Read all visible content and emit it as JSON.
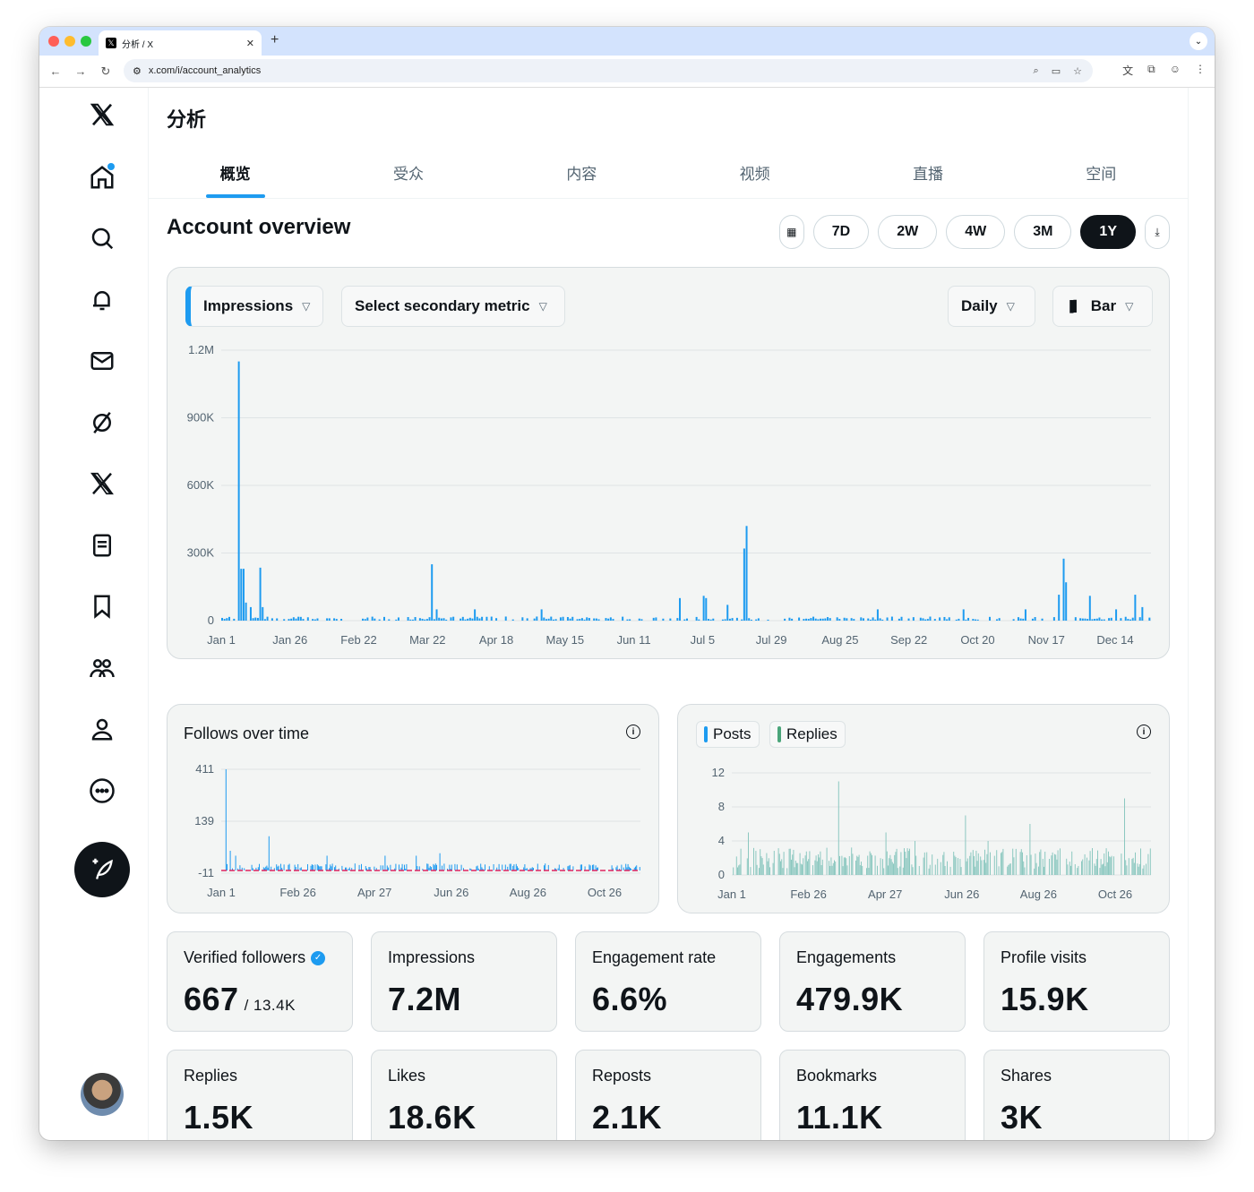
{
  "browser": {
    "tab_title": "分析 / X",
    "url": "x.com/i/account_analytics"
  },
  "page": {
    "title": "分析",
    "tabs": [
      "概览",
      "受众",
      "内容",
      "视频",
      "直播",
      "空间"
    ],
    "section_title": "Account overview",
    "ranges": [
      "7D",
      "2W",
      "4W",
      "3M",
      "1Y"
    ],
    "active_range": "1Y"
  },
  "main_chart": {
    "primary_metric": "Impressions",
    "secondary_metric": "Select secondary metric",
    "granularity": "Daily",
    "chart_kind": "Bar"
  },
  "follows_card": {
    "title": "Follows over time"
  },
  "posts_card": {
    "legend": [
      "Posts",
      "Replies"
    ]
  },
  "colors": {
    "accent": "#1d9bf0",
    "replies": "#4aa57a",
    "negative": "#e0245e"
  },
  "chart_data": [
    {
      "type": "bar",
      "title": "Impressions",
      "ylim": [
        0,
        1200000
      ],
      "y_ticks": [
        "0",
        "300K",
        "600K",
        "900K",
        "1.2M"
      ],
      "x_ticks": [
        "Jan 1",
        "Jan 26",
        "Feb 22",
        "Mar 22",
        "Apr 18",
        "May 15",
        "Jun 11",
        "Jul 5",
        "Jul 29",
        "Aug 25",
        "Sep 22",
        "Oct 20",
        "Nov 17",
        "Dec 14"
      ],
      "series": [
        {
          "name": "Impressions",
          "peaks": [
            [
              7,
              1150000
            ],
            [
              8,
              230000
            ],
            [
              9,
              230000
            ],
            [
              10,
              80000
            ],
            [
              12,
              60000
            ],
            [
              16,
              235000
            ],
            [
              17,
              60000
            ],
            [
              88,
              250000
            ],
            [
              90,
              50000
            ],
            [
              106,
              50000
            ],
            [
              134,
              50000
            ],
            [
              192,
              100000
            ],
            [
              202,
              110000
            ],
            [
              203,
              100000
            ],
            [
              212,
              70000
            ],
            [
              219,
              320000
            ],
            [
              220,
              420000
            ],
            [
              275,
              50000
            ],
            [
              311,
              50000
            ],
            [
              337,
              50000
            ],
            [
              351,
              115000
            ],
            [
              353,
              275000
            ],
            [
              354,
              170000
            ],
            [
              364,
              110000
            ],
            [
              375,
              50000
            ],
            [
              383,
              115000
            ],
            [
              386,
              60000
            ]
          ]
        }
      ]
    },
    {
      "type": "bar",
      "title": "Follows over time",
      "ylim": [
        -11,
        411
      ],
      "y_ticks": [
        "-11",
        "139",
        "411"
      ],
      "x_ticks": [
        "Jan 1",
        "Feb 26",
        "Apr 27",
        "Jun 26",
        "Aug 26",
        "Oct 26"
      ],
      "series": [
        {
          "name": "Follows",
          "peaks": [
            [
              4,
              411
            ],
            [
              8,
              80
            ],
            [
              13,
              60
            ],
            [
              44,
              139
            ],
            [
              98,
              60
            ],
            [
              152,
              60
            ],
            [
              181,
              60
            ],
            [
              203,
              70
            ]
          ]
        }
      ]
    },
    {
      "type": "bar",
      "title": "Posts and replies",
      "ylim": [
        0,
        12
      ],
      "y_ticks": [
        "0",
        "4",
        "8",
        "12"
      ],
      "x_ticks": [
        "Jan 1",
        "Feb 26",
        "Apr 27",
        "Jun 26",
        "Aug 26",
        "Oct 26"
      ],
      "series": [
        {
          "name": "Posts"
        },
        {
          "name": "Replies",
          "peaks": [
            [
              15,
              5
            ],
            [
              99,
              11
            ],
            [
              143,
              5
            ],
            [
              170,
              4
            ],
            [
              217,
              7
            ],
            [
              238,
              4
            ],
            [
              277,
              6
            ],
            [
              365,
              9
            ]
          ]
        }
      ]
    }
  ],
  "stats_row1": [
    {
      "label": "Verified followers",
      "value": "667",
      "sub": "/ 13.4K",
      "verified": true
    },
    {
      "label": "Impressions",
      "value": "7.2M"
    },
    {
      "label": "Engagement rate",
      "value": "6.6%"
    },
    {
      "label": "Engagements",
      "value": "479.9K"
    },
    {
      "label": "Profile visits",
      "value": "15.9K"
    }
  ],
  "stats_row2": [
    {
      "label": "Replies",
      "value": "1.5K"
    },
    {
      "label": "Likes",
      "value": "18.6K"
    },
    {
      "label": "Reposts",
      "value": "2.1K"
    },
    {
      "label": "Bookmarks",
      "value": "11.1K"
    },
    {
      "label": "Shares",
      "value": "3K"
    }
  ]
}
